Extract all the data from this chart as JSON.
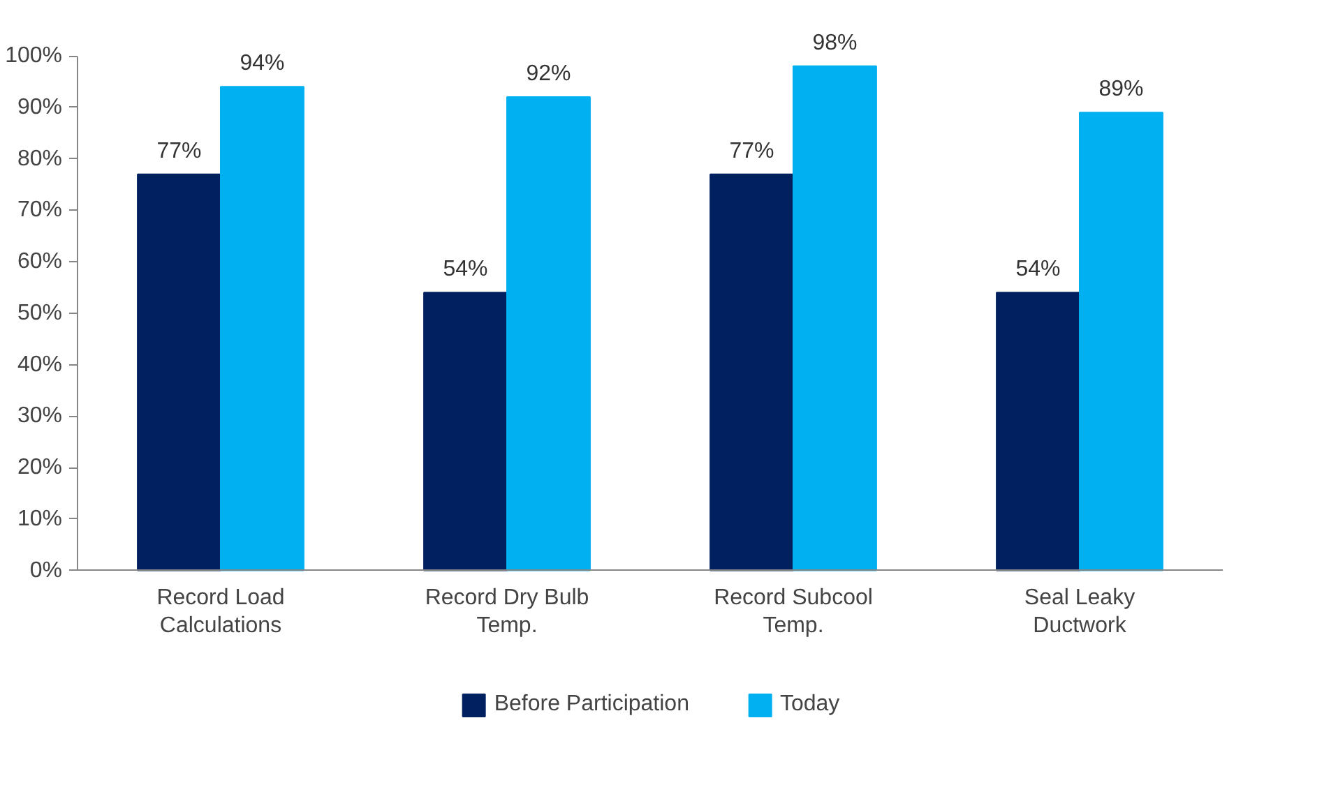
{
  "chart_data": {
    "type": "bar",
    "categories": [
      "Record Load\nCalculations",
      "Record Dry Bulb\nTemp.",
      "Record Subcool\nTemp.",
      "Seal Leaky\nDuctwork"
    ],
    "series": [
      {
        "name": "Before Participation",
        "color": "#002060",
        "values": [
          77,
          54,
          77,
          54
        ]
      },
      {
        "name": "Today",
        "color": "#00b0f0",
        "values": [
          94,
          92,
          98,
          89
        ]
      }
    ],
    "ylim": [
      0,
      100
    ],
    "yticks": [
      {
        "value": 0,
        "label": "0%"
      },
      {
        "value": 10,
        "label": "10%"
      },
      {
        "value": 20,
        "label": "20%"
      },
      {
        "value": 30,
        "label": "30%"
      },
      {
        "value": 40,
        "label": "40%"
      },
      {
        "value": 50,
        "label": "50%"
      },
      {
        "value": 60,
        "label": "60%"
      },
      {
        "value": 70,
        "label": "70%"
      },
      {
        "value": 80,
        "label": "80%"
      },
      {
        "value": 90,
        "label": "90%"
      },
      {
        "value": 100,
        "label": "100%"
      }
    ],
    "value_labels": [
      [
        "77%",
        "54%",
        "77%",
        "54%"
      ],
      [
        "94%",
        "92%",
        "98%",
        "89%"
      ]
    ],
    "legend": "bottom",
    "grid": false
  }
}
